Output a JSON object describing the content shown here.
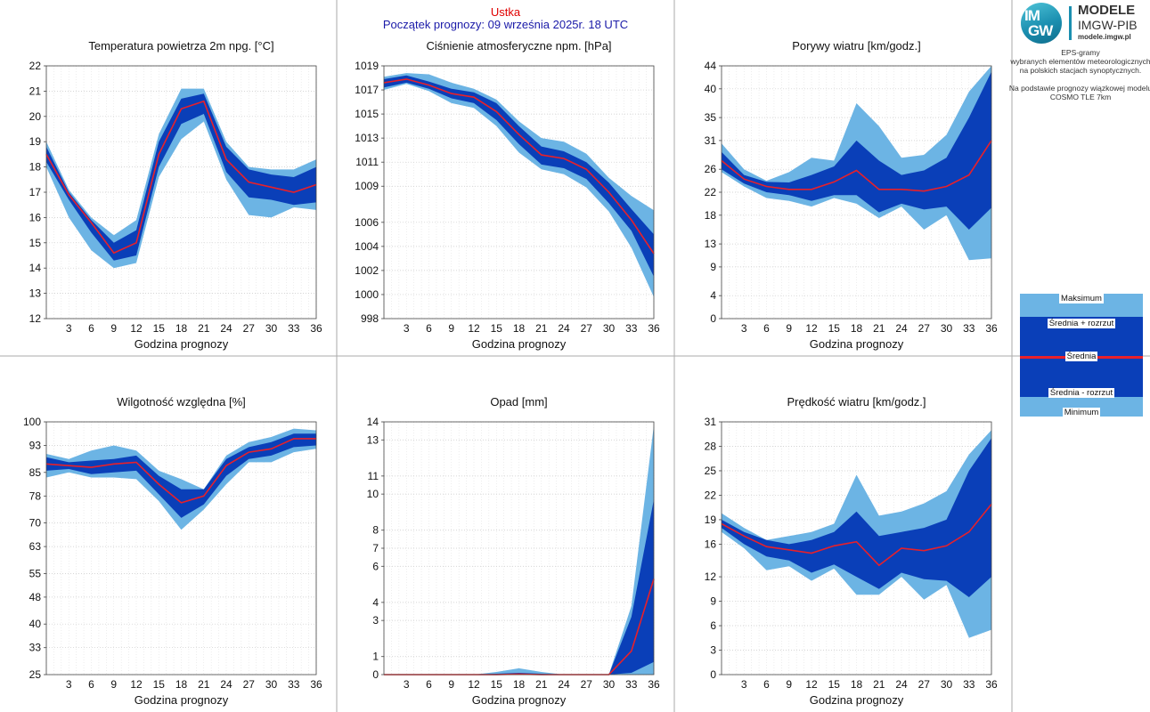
{
  "header": {
    "station": "Ustka",
    "forecast_start": "Początek prognozy: 09 września 2025r. 18 UTC"
  },
  "logo": {
    "mark_top": "IM",
    "mark_bottom": "GW",
    "title": "MODELE",
    "subtitle": "IMGW-PIB",
    "url": "modele.imgw.pl"
  },
  "info_text": [
    "EPS-gramy",
    "wybranych elementów meteorologicznych",
    "na polskich stacjach  synoptycznych.",
    "",
    "Na podstawie prognozy wiązkowej modelu",
    "COSMO TLE 7km"
  ],
  "legend": {
    "labels": [
      "Maksimum",
      "Średnia + rozrzut",
      "Średnia",
      "Średnia - rozrzut",
      "Minimum"
    ]
  },
  "colors": {
    "outer_band": "#6cb4e4",
    "inner_band": "#0a3fb8",
    "mean_line": "#e8202a",
    "station": "#e00000",
    "forecast_start": "#1a1aa8",
    "grid": "#c8c8c8",
    "dividers": "#aaaaaa"
  },
  "chart_data": [
    {
      "type": "area",
      "title": "Temperatura powietrza 2m npg. [°C]",
      "xlabel": "Godzina prognozy",
      "ylabel": "",
      "x": [
        0,
        3,
        6,
        9,
        12,
        15,
        18,
        21,
        24,
        27,
        30,
        33,
        36
      ],
      "xticks": [
        3,
        6,
        9,
        12,
        15,
        18,
        21,
        24,
        27,
        30,
        33,
        36
      ],
      "ylim": [
        12,
        22
      ],
      "yticks": [
        12,
        13,
        14,
        15,
        16,
        17,
        18,
        19,
        20,
        21,
        22
      ],
      "grid": true,
      "series": [
        {
          "name": "Maksimum",
          "values": [
            19.0,
            17.1,
            16.0,
            15.3,
            15.9,
            19.3,
            21.1,
            21.1,
            19.0,
            18.0,
            17.9,
            17.9,
            18.3
          ]
        },
        {
          "name": "Średnia + rozrzut",
          "values": [
            18.8,
            17.0,
            15.9,
            15.0,
            15.5,
            19.0,
            20.7,
            20.9,
            18.8,
            17.9,
            17.7,
            17.6,
            18.0
          ]
        },
        {
          "name": "Średnia",
          "values": [
            18.5,
            16.9,
            15.8,
            14.6,
            15.0,
            18.5,
            20.3,
            20.6,
            18.3,
            17.4,
            17.2,
            17.0,
            17.3
          ]
        },
        {
          "name": "Średnia - rozrzut",
          "values": [
            18.2,
            16.7,
            15.4,
            14.3,
            14.5,
            18.0,
            19.7,
            20.1,
            17.8,
            16.8,
            16.7,
            16.5,
            16.6
          ]
        },
        {
          "name": "Minimum",
          "values": [
            18.0,
            16.0,
            14.7,
            14.0,
            14.2,
            17.6,
            19.1,
            19.8,
            17.5,
            16.1,
            16.0,
            16.4,
            16.3
          ]
        }
      ]
    },
    {
      "type": "area",
      "title": "Ciśnienie atmosferyczne npm. [hPa]",
      "xlabel": "Godzina prognozy",
      "ylabel": "",
      "x": [
        0,
        3,
        6,
        9,
        12,
        15,
        18,
        21,
        24,
        27,
        30,
        33,
        36
      ],
      "xticks": [
        3,
        6,
        9,
        12,
        15,
        18,
        21,
        24,
        27,
        30,
        33,
        36
      ],
      "ylim": [
        998,
        1019
      ],
      "yticks": [
        998,
        1000,
        1002,
        1004,
        1006,
        1009,
        1011,
        1013,
        1015,
        1017,
        1019
      ],
      "grid": true,
      "series": [
        {
          "name": "Maksimum",
          "values": [
            1018.1,
            1018.4,
            1018.3,
            1017.6,
            1017.1,
            1016.2,
            1014.4,
            1013.0,
            1012.7,
            1011.7,
            1009.7,
            1008.2,
            1007.0
          ]
        },
        {
          "name": "Średnia + rozrzut",
          "values": [
            1017.9,
            1018.2,
            1017.7,
            1017.1,
            1016.8,
            1015.9,
            1014.0,
            1012.3,
            1011.9,
            1011.0,
            1009.3,
            1007.1,
            1005.0
          ]
        },
        {
          "name": "Średnia",
          "values": [
            1017.6,
            1017.9,
            1017.4,
            1016.7,
            1016.4,
            1015.2,
            1013.3,
            1011.6,
            1011.3,
            1010.4,
            1008.5,
            1006.2,
            1003.4
          ]
        },
        {
          "name": "Średnia - rozrzut",
          "values": [
            1017.2,
            1017.6,
            1017.1,
            1016.3,
            1015.9,
            1014.5,
            1012.5,
            1010.8,
            1010.5,
            1009.6,
            1007.6,
            1005.3,
            1001.5
          ]
        },
        {
          "name": "Minimum",
          "values": [
            1017.0,
            1017.5,
            1016.9,
            1015.9,
            1015.5,
            1014.0,
            1011.8,
            1010.4,
            1010.0,
            1008.9,
            1006.9,
            1003.9,
            999.8
          ]
        }
      ]
    },
    {
      "type": "area",
      "title": "Porywy wiatru [km/godz.]",
      "xlabel": "Godzina prognozy",
      "ylabel": "",
      "x": [
        0,
        3,
        6,
        9,
        12,
        15,
        18,
        21,
        24,
        27,
        30,
        33,
        36
      ],
      "xticks": [
        3,
        6,
        9,
        12,
        15,
        18,
        21,
        24,
        27,
        30,
        33,
        36
      ],
      "ylim": [
        0,
        44
      ],
      "yticks": [
        0,
        4,
        9,
        13,
        18,
        22,
        26,
        31,
        35,
        40,
        44
      ],
      "grid": true,
      "series": [
        {
          "name": "Maksimum",
          "values": [
            30.5,
            26.0,
            24.0,
            25.5,
            28.0,
            27.5,
            37.5,
            33.5,
            28.0,
            28.5,
            32.0,
            39.5,
            44.0
          ]
        },
        {
          "name": "Średnia + rozrzut",
          "values": [
            29.0,
            25.0,
            23.8,
            23.7,
            25.0,
            26.5,
            31.0,
            27.5,
            25.0,
            25.8,
            28.0,
            35.0,
            43.0
          ]
        },
        {
          "name": "Średnia",
          "values": [
            27.5,
            24.3,
            23.0,
            22.5,
            22.5,
            23.8,
            25.8,
            22.5,
            22.5,
            22.2,
            23.0,
            25.0,
            31.0
          ]
        },
        {
          "name": "Średnia - rozrzut",
          "values": [
            26.0,
            23.5,
            22.0,
            21.5,
            20.5,
            21.5,
            21.5,
            18.5,
            20.0,
            19.0,
            19.5,
            15.5,
            19.3
          ]
        },
        {
          "name": "Minimum",
          "values": [
            25.5,
            23.0,
            21.0,
            20.5,
            19.5,
            21.0,
            20.0,
            17.5,
            19.5,
            15.5,
            18.0,
            10.2,
            10.5
          ]
        }
      ]
    },
    {
      "type": "area",
      "title": "Wilgotność względna [%]",
      "xlabel": "Godzina prognozy",
      "ylabel": "",
      "x": [
        0,
        3,
        6,
        9,
        12,
        15,
        18,
        21,
        24,
        27,
        30,
        33,
        36
      ],
      "xticks": [
        3,
        6,
        9,
        12,
        15,
        18,
        21,
        24,
        27,
        30,
        33,
        36
      ],
      "ylim": [
        25,
        100
      ],
      "yticks": [
        25,
        33,
        40,
        48,
        55,
        63,
        70,
        78,
        85,
        93,
        100
      ],
      "grid": true,
      "series": [
        {
          "name": "Maksimum",
          "values": [
            90.5,
            89.0,
            91.5,
            93.0,
            91.5,
            85.5,
            83.0,
            80.0,
            90.0,
            94.0,
            95.5,
            98.0,
            97.5
          ]
        },
        {
          "name": "Średnia + rozrzut",
          "values": [
            89.5,
            88.0,
            88.5,
            89.0,
            90.0,
            84.0,
            80.0,
            80.0,
            89.0,
            92.5,
            94.0,
            96.5,
            96.5
          ]
        },
        {
          "name": "Średnia",
          "values": [
            87.5,
            87.0,
            86.5,
            87.5,
            88.0,
            81.5,
            76.0,
            78.0,
            87.0,
            91.0,
            92.0,
            95.0,
            95.0
          ]
        },
        {
          "name": "Średnia - rozrzut",
          "values": [
            85.5,
            86.0,
            84.5,
            85.0,
            85.5,
            78.5,
            71.5,
            75.5,
            84.0,
            89.0,
            90.0,
            92.5,
            93.0
          ]
        },
        {
          "name": "Minimum",
          "values": [
            83.5,
            85.0,
            83.5,
            83.5,
            83.0,
            76.5,
            68.0,
            74.0,
            81.5,
            88.0,
            88.0,
            91.0,
            92.0
          ]
        }
      ]
    },
    {
      "type": "area",
      "title": "Opad [mm]",
      "xlabel": "Godzina prognozy",
      "ylabel": "",
      "x": [
        0,
        3,
        6,
        9,
        12,
        15,
        18,
        21,
        24,
        27,
        30,
        33,
        36
      ],
      "xticks": [
        3,
        6,
        9,
        12,
        15,
        18,
        21,
        24,
        27,
        30,
        33,
        36
      ],
      "ylim": [
        0,
        14
      ],
      "yticks": [
        0,
        1,
        3,
        4,
        6,
        7,
        8,
        10,
        11,
        13,
        14
      ],
      "grid": true,
      "series": [
        {
          "name": "Maksimum",
          "values": [
            0,
            0,
            0,
            0,
            0,
            0.15,
            0.35,
            0.15,
            0,
            0,
            0,
            3.8,
            13.8
          ]
        },
        {
          "name": "Średnia + rozrzut",
          "values": [
            0,
            0,
            0,
            0,
            0,
            0.05,
            0.1,
            0.05,
            0,
            0,
            0,
            3.2,
            9.7
          ]
        },
        {
          "name": "Średnia",
          "values": [
            0,
            0,
            0,
            0,
            0,
            0,
            0.03,
            0,
            0,
            0,
            0,
            1.3,
            5.3
          ]
        },
        {
          "name": "Średnia - rozrzut",
          "values": [
            0,
            0,
            0,
            0,
            0,
            0,
            0,
            0,
            0,
            0,
            0,
            0.1,
            0.7
          ]
        },
        {
          "name": "Minimum",
          "values": [
            0,
            0,
            0,
            0,
            0,
            0,
            0,
            0,
            0,
            0,
            0,
            0,
            0
          ]
        }
      ]
    },
    {
      "type": "area",
      "title": "Prędkość wiatru [km/godz.]",
      "xlabel": "Godzina prognozy",
      "ylabel": "",
      "x": [
        0,
        3,
        6,
        9,
        12,
        15,
        18,
        21,
        24,
        27,
        30,
        33,
        36
      ],
      "xticks": [
        3,
        6,
        9,
        12,
        15,
        18,
        21,
        24,
        27,
        30,
        33,
        36
      ],
      "ylim": [
        0,
        31
      ],
      "yticks": [
        0,
        3,
        6,
        9,
        12,
        16,
        19,
        22,
        25,
        28,
        31
      ],
      "grid": true,
      "series": [
        {
          "name": "Maksimum",
          "values": [
            19.8,
            18.0,
            16.5,
            17.0,
            17.5,
            18.5,
            24.5,
            19.5,
            20.0,
            21.0,
            22.5,
            27.0,
            30.0
          ]
        },
        {
          "name": "Średnia + rozrzut",
          "values": [
            19.0,
            17.5,
            16.5,
            16.0,
            16.5,
            17.5,
            20.0,
            17.0,
            17.5,
            18.0,
            19.0,
            25.0,
            29.0
          ]
        },
        {
          "name": "Średnia",
          "values": [
            18.5,
            17.0,
            15.7,
            15.3,
            14.9,
            15.8,
            16.3,
            13.4,
            15.5,
            15.2,
            15.8,
            17.5,
            20.9
          ]
        },
        {
          "name": "Średnia - rozrzut",
          "values": [
            18.0,
            16.0,
            14.5,
            14.0,
            12.5,
            13.5,
            12.0,
            10.5,
            12.5,
            11.7,
            11.5,
            9.5,
            12.0
          ]
        },
        {
          "name": "Minimum",
          "values": [
            17.5,
            15.5,
            12.8,
            13.3,
            11.5,
            13.0,
            9.8,
            9.8,
            12.0,
            9.2,
            11.0,
            4.5,
            5.5
          ]
        }
      ]
    }
  ]
}
